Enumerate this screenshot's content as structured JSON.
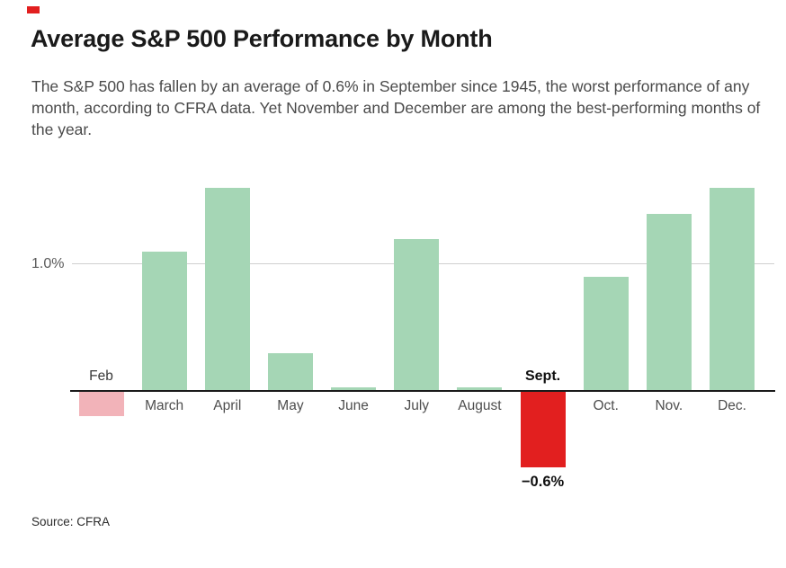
{
  "accent_color": "#e21f1f",
  "header": {
    "title": "Average S&P 500 Performance by Month",
    "subtitle": "The S&P 500 has fallen by an average of 0.6% in September since 1945, the worst performance of any month, according to CFRA data. Yet November and December are among the best-performing months of the year."
  },
  "source": {
    "text": "Source: CFRA"
  },
  "chart_data": {
    "type": "bar",
    "title": "Average S&P 500 Performance by Month",
    "xlabel": "",
    "ylabel": "",
    "unit": "%",
    "categories": [
      "Feb",
      "March",
      "April",
      "May",
      "June",
      "July",
      "August",
      "Sept.",
      "Oct.",
      "Nov.",
      "Dec."
    ],
    "values": [
      -0.2,
      1.1,
      1.6,
      0.3,
      0.03,
      1.2,
      0.03,
      -0.6,
      0.9,
      1.4,
      1.6
    ],
    "ylim": [
      -0.8,
      1.7
    ],
    "grid": "single horizontal gridline at y=1.0",
    "y_gridline": {
      "value": 1.0,
      "label": "1.0%"
    },
    "axis_tick": {
      "label": "1.0%",
      "value": 1.0
    },
    "legend": "none",
    "colors": {
      "positive": "#a5d6b5",
      "negative_feb": "#f2b3b9",
      "negative_sept": "#e21f1f",
      "axis": "#1b1b1b",
      "gridline": "#cfcfcf"
    },
    "bar_color_keys": [
      "negative_feb",
      "positive",
      "positive",
      "positive",
      "positive",
      "positive",
      "positive",
      "negative_sept",
      "positive",
      "positive",
      "positive"
    ],
    "labels_above_axis": [
      "Feb",
      "Sept."
    ],
    "bold_labels": [
      "Sept."
    ],
    "value_annotation": {
      "category": "Sept.",
      "text": "−0.6%"
    }
  }
}
